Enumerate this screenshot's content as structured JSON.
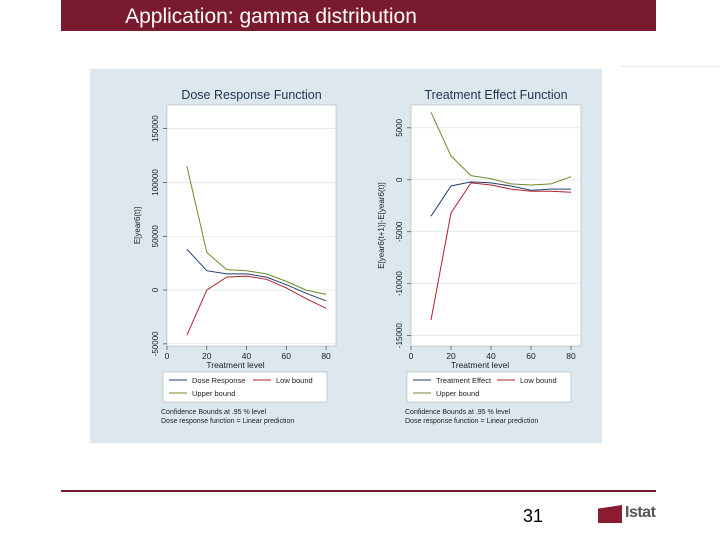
{
  "slide": {
    "title": "Application: gamma distribution",
    "page_number": "31",
    "logo_text": "Istat"
  },
  "colors": {
    "title_bar": "#7a1a2e",
    "panel_bg": "#dde7ee",
    "plot_bg": "#ffffff",
    "series_main": "#1f3f6f",
    "series_low": "#b0222e",
    "series_up": "#6f8a2a"
  },
  "chart_data": [
    {
      "type": "line",
      "title": "Dose Response Function",
      "xlabel": "Treatment level",
      "ylabel": "E[year6(t)]",
      "x": [
        10,
        20,
        30,
        40,
        50,
        60,
        70,
        80
      ],
      "xticks": [
        0,
        20,
        40,
        60,
        80
      ],
      "xtick_labels": [
        "0",
        "20",
        "40",
        "60",
        "80"
      ],
      "xlim": [
        0,
        85
      ],
      "yticks": [
        -50000,
        0,
        50000,
        100000,
        150000
      ],
      "ytick_labels": [
        "-50000",
        "0",
        "50000",
        "100000",
        "150000"
      ],
      "ylim": [
        -52000,
        172000
      ],
      "series": [
        {
          "name": "Dose Response",
          "color_key": "series_main",
          "values": [
            38000,
            18000,
            15000,
            15000,
            12000,
            5000,
            -3000,
            -10000
          ]
        },
        {
          "name": "Low bound",
          "color_key": "series_low",
          "values": [
            -42000,
            0,
            12000,
            13000,
            10000,
            2000,
            -8000,
            -17000
          ]
        },
        {
          "name": "Upper bound",
          "color_key": "series_up",
          "values": [
            115000,
            35000,
            19000,
            18000,
            15000,
            8000,
            0,
            -4000
          ]
        }
      ],
      "legend": [
        "Dose Response",
        "Low bound",
        "Upper bound"
      ],
      "notes": [
        "Confidence Bounds at .95 % level",
        "Dose response function = Linear prediction"
      ]
    },
    {
      "type": "line",
      "title": "Treatment Effect Function",
      "xlabel": "Treatment level",
      "ylabel": "E[year6(t+1)]-E[year6(t)]",
      "x": [
        10,
        20,
        30,
        40,
        50,
        60,
        70,
        80
      ],
      "xticks": [
        0,
        20,
        40,
        60,
        80
      ],
      "xtick_labels": [
        "0",
        "20",
        "40",
        "60",
        "80"
      ],
      "xlim": [
        0,
        85
      ],
      "yticks": [
        -15000,
        -10000,
        -5000,
        0,
        5000
      ],
      "ytick_labels": [
        "-15000",
        "-10000",
        "-5000",
        "0",
        "5000"
      ],
      "ylim": [
        -16000,
        7200
      ],
      "series": [
        {
          "name": "Treatment Effect",
          "color_key": "series_main",
          "values": [
            -3500,
            -600,
            -200,
            -300,
            -600,
            -1000,
            -900,
            -900
          ]
        },
        {
          "name": "Low bound",
          "color_key": "series_low",
          "values": [
            -13500,
            -3200,
            -300,
            -500,
            -900,
            -1100,
            -1100,
            -1200
          ]
        },
        {
          "name": "Upper bound",
          "color_key": "series_up",
          "values": [
            6500,
            2300,
            400,
            100,
            -400,
            -500,
            -400,
            300
          ]
        }
      ],
      "legend": [
        "Treatment Effect",
        "Low bound",
        "Upper bound"
      ],
      "notes": [
        "Confidence Bounds at .95 % level",
        "Dose response function = Linear prediction"
      ]
    }
  ]
}
